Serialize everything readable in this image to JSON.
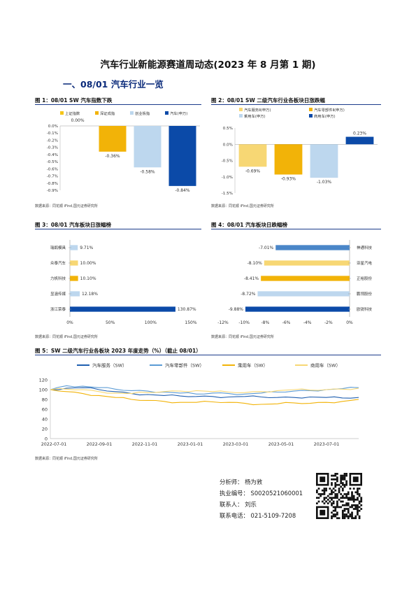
{
  "title": "汽车行业新能源赛道周动态(2023 年 8 月第 1 期)",
  "section_heading": "一、08/01 汽车行业一览",
  "source_note": "数据来源：同花顺 iFind,国元证券研究所",
  "fig1": {
    "title": "图 1：08/01 SW 汽车指数下跌",
    "chart_data": {
      "type": "bar",
      "categories": [
        "上证指数",
        "深证成指",
        "创业板指",
        "汽车(申万)"
      ],
      "values": [
        0.0,
        -0.36,
        -0.58,
        -0.84
      ],
      "value_labels": [
        "0.00%",
        "-0.36%",
        "-0.58%",
        "-0.84%"
      ],
      "colors": [
        "#f5c518",
        "#f2b308",
        "#bdd7ee",
        "#0b4aa8"
      ],
      "yticks": [
        "0.0%",
        "-0.1%",
        "-0.2%",
        "-0.3%",
        "-0.4%",
        "-0.5%",
        "-0.6%",
        "-0.7%",
        "-0.8%",
        "-0.9%"
      ],
      "ylim": [
        -0.9,
        0
      ],
      "legend": "top"
    }
  },
  "fig2": {
    "title": "图 2：08/01 SW 二级汽车行业各板块日涨跌幅",
    "chart_data": {
      "type": "bar",
      "categories": [
        "汽车服务Ⅱ(申万)",
        "汽车零部件Ⅱ(申万)",
        "乘用车(申万)",
        "商用车(申万)"
      ],
      "values": [
        -0.69,
        -0.93,
        -1.03,
        0.23
      ],
      "value_labels": [
        "-0.69%",
        "-0.93%",
        "-1.03%",
        "0.23%"
      ],
      "colors": [
        "#f7d774",
        "#f2b308",
        "#bdd7ee",
        "#0b4aa8"
      ],
      "yticks": [
        "0.5%",
        "0.0%",
        "-0.5%",
        "-1.0%",
        "-1.5%"
      ],
      "ylim": [
        -1.5,
        0.5
      ],
      "legend": "top"
    }
  },
  "fig3": {
    "title": "图 3：08/01 汽车板块日涨幅榜",
    "chart_data": {
      "type": "bar",
      "categories": [
        "瑞鹄模具",
        "众泰汽车",
        "力帆科技",
        "显涵传媒",
        "浙江荣泰"
      ],
      "values": [
        9.71,
        10.0,
        10.1,
        12.18,
        130.87
      ],
      "value_labels": [
        "9.71%",
        "10.00%",
        "10.10%",
        "12.18%",
        "130.87%"
      ],
      "colors": [
        "#bdd7ee",
        "#f7d774",
        "#f2b308",
        "#bdd7ee",
        "#0b4aa8"
      ],
      "xticks": [
        "0%",
        "50%",
        "100%",
        "150%"
      ],
      "xlim": [
        0,
        150
      ]
    }
  },
  "fig4": {
    "title": "图 4：08/01 汽车板块日跌幅榜",
    "chart_data": {
      "type": "bar",
      "categories": [
        "神通科技",
        "亚星汽电",
        "正裕股份",
        "鹏翎股份",
        "欧锐科技"
      ],
      "values": [
        -7.01,
        -8.1,
        -8.41,
        -8.72,
        -9.88
      ],
      "value_labels": [
        "-7.01%",
        "-8.10%",
        "-8.41%",
        "-8.72%",
        "-9.88%"
      ],
      "colors": [
        "#4a86c8",
        "#f7d774",
        "#f2b308",
        "#bdd7ee",
        "#0b4aa8"
      ],
      "xticks": [
        "-12%",
        "-10%",
        "-8%",
        "-6%",
        "-4%",
        "-2%",
        "0%"
      ],
      "xlim": [
        -12,
        0
      ]
    }
  },
  "fig5": {
    "title": "图 5：SW 二级汽车行业各板块 2023 年度走势（%）（截止 08/01）",
    "chart_data": {
      "type": "line",
      "yticks": [
        "0",
        "20",
        "40",
        "60",
        "80",
        "100",
        "120"
      ],
      "ylim": [
        0,
        120
      ],
      "xticks": [
        "2022-07-01",
        "2022-09-01",
        "2022-11-01",
        "2023-01-01",
        "2023-03-01",
        "2023-05-01",
        "2023-07-01"
      ],
      "series": [
        {
          "name": "汽车服务（SW）",
          "color": "#1f5fb0",
          "values": [
            100,
            103,
            104,
            100,
            96,
            92,
            90,
            88,
            87,
            86,
            86,
            85,
            86,
            85,
            84,
            84,
            85,
            84,
            83,
            84
          ]
        },
        {
          "name": "汽车零部件（SW）",
          "color": "#5b9bd5",
          "values": [
            100,
            108,
            107,
            104,
            101,
            98,
            97,
            95,
            93,
            91,
            93,
            92,
            91,
            93,
            95,
            97,
            98,
            100,
            102,
            104
          ]
        },
        {
          "name": "乘用车（SW）",
          "color": "#f2b308",
          "values": [
            100,
            96,
            92,
            88,
            84,
            80,
            78,
            76,
            74,
            74,
            75,
            74,
            72,
            70,
            71,
            73,
            72,
            74,
            76,
            80
          ]
        },
        {
          "name": "商用车（SW）",
          "color": "#f7d774",
          "values": [
            100,
            101,
            100,
            96,
            93,
            92,
            94,
            96,
            97,
            98,
            96,
            95,
            94,
            96,
            98,
            100,
            99,
            100,
            101,
            103
          ]
        }
      ],
      "legend": "top"
    }
  },
  "analyst": {
    "name_line": "分析师： 杨为敩",
    "license_line": "执业编号： S0020521060001",
    "contact_line": "联系人： 刘乐",
    "phone_line": "联系电话： 021-5109-7208"
  }
}
